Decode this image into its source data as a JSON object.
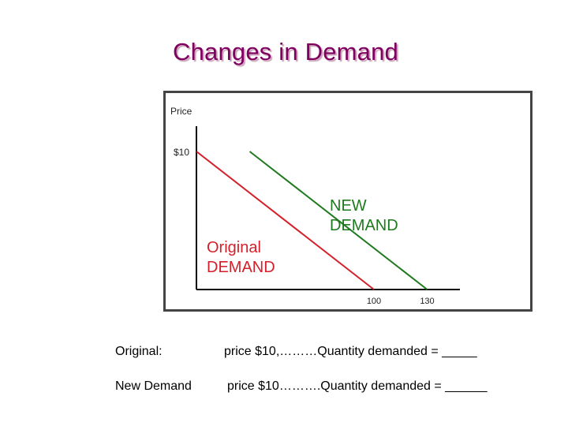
{
  "slide": {
    "title": "Changes in Demand"
  },
  "chart_data": {
    "type": "line",
    "ylabel": "Price",
    "y_tick_labels": [
      "$10"
    ],
    "x_tick_labels": [
      "100",
      "130"
    ],
    "series": [
      {
        "name": "Original DEMAND",
        "label_lines": [
          "Original",
          "DEMAND"
        ],
        "color": "#d4202a",
        "points": [
          [
            0,
            10
          ],
          [
            100,
            0
          ]
        ]
      },
      {
        "name": "NEW DEMAND",
        "label_lines": [
          "NEW",
          "DEMAND"
        ],
        "color": "#1f7a1f",
        "points": [
          [
            30,
            10
          ],
          [
            130,
            0
          ]
        ]
      }
    ],
    "xlim": [
      0,
      180
    ],
    "ylim": [
      0,
      11
    ],
    "grid": false,
    "colors": {
      "frame_border": "#444444",
      "axis": "#000000",
      "label_text": "#222222"
    }
  },
  "questions": [
    {
      "label": "Original:",
      "text": "price $10,………Quantity demanded = _____"
    },
    {
      "label": "New Demand",
      "text": "price $10……….Quantity demanded = ______"
    }
  ]
}
